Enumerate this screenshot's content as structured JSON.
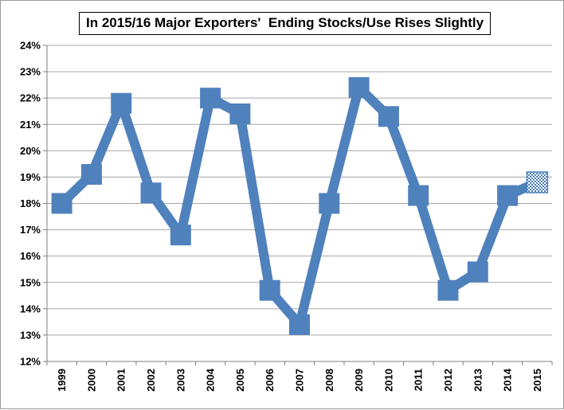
{
  "chart_data": {
    "type": "line",
    "title": "In 2015/16 Major Exporters'  Ending Stocks/Use Rises Slightly",
    "xlabel": "",
    "ylabel": "",
    "ylim": [
      12,
      24
    ],
    "y_ticks": [
      "12%",
      "13%",
      "14%",
      "15%",
      "16%",
      "17%",
      "18%",
      "19%",
      "20%",
      "21%",
      "22%",
      "23%",
      "24%"
    ],
    "grid": true,
    "legend": "none",
    "categories": [
      "1999",
      "2000",
      "2001",
      "2002",
      "2003",
      "2004",
      "2005",
      "2006",
      "2007",
      "2008",
      "2009",
      "2010",
      "2011",
      "2012",
      "2013",
      "2014",
      "2015"
    ],
    "series": [
      {
        "values": [
          18.0,
          19.1,
          21.8,
          18.4,
          16.8,
          22.0,
          21.4,
          14.7,
          13.4,
          18.0,
          22.4,
          21.3,
          18.3,
          14.7,
          15.4,
          18.3,
          18.8
        ],
        "color": "#4f81bd",
        "last_point_style": "checkered-projection"
      }
    ]
  }
}
